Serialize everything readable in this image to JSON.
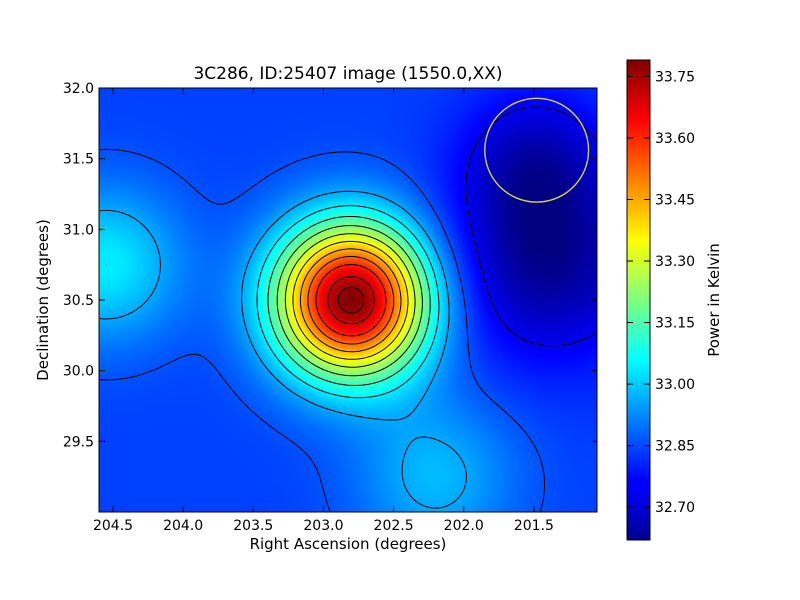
{
  "chart_data": {
    "type": "heatmap",
    "title": "3C286, ID:25407 image (1550.0,XX)",
    "xlabel": "Right Ascension (degrees)",
    "ylabel": "Declination (degrees)",
    "xlim": [
      204.6,
      201.05
    ],
    "ylim": [
      29.0,
      32.0
    ],
    "x_ticks": [
      204.5,
      204.0,
      203.5,
      203.0,
      202.5,
      202.0,
      201.5
    ],
    "x_tick_labels": [
      "204.5",
      "204.0",
      "203.5",
      "203.0",
      "202.5",
      "202.0",
      "201.5"
    ],
    "y_ticks": [
      29.5,
      30.0,
      30.5,
      31.0,
      31.5,
      32.0
    ],
    "y_tick_labels": [
      "29.5",
      "30.0",
      "30.5",
      "31.0",
      "31.5",
      "32.0"
    ],
    "colorbar": {
      "label": "Power in Kelvin",
      "range": [
        32.62,
        33.79
      ],
      "ticks": [
        32.7,
        32.85,
        33.0,
        33.15,
        33.3,
        33.45,
        33.6,
        33.75
      ],
      "tick_labels": [
        "32.70",
        "32.85",
        "33.00",
        "33.15",
        "33.30",
        "33.45",
        "33.60",
        "33.75"
      ],
      "colormap": "jet"
    },
    "field": {
      "base": 32.84,
      "components": [
        {
          "ra": 202.8,
          "dec": 30.5,
          "amp": 0.95,
          "sigma": 0.38
        },
        {
          "ra": 204.55,
          "dec": 30.75,
          "amp": 0.2,
          "sigma": 0.38
        },
        {
          "ra": 202.2,
          "dec": 29.25,
          "amp": 0.14,
          "sigma": 0.4
        },
        {
          "ra": 201.4,
          "dec": 30.8,
          "amp": -0.2,
          "sigma": 0.5
        },
        {
          "ra": 201.5,
          "dec": 31.5,
          "amp": -0.12,
          "sigma": 0.35
        }
      ],
      "contour_levels": [
        32.75,
        32.86,
        32.96,
        33.04,
        33.12,
        33.2,
        33.28,
        33.36,
        33.44,
        33.52,
        33.6,
        33.7,
        33.76
      ],
      "peak": {
        "ra": 202.78,
        "dec": 30.5,
        "value": 33.79
      }
    },
    "beam_circle": {
      "ra": 201.48,
      "dec": 31.56,
      "radius_deg": 0.37,
      "color": "#d4d44a"
    },
    "grid": false,
    "legend": "none"
  }
}
